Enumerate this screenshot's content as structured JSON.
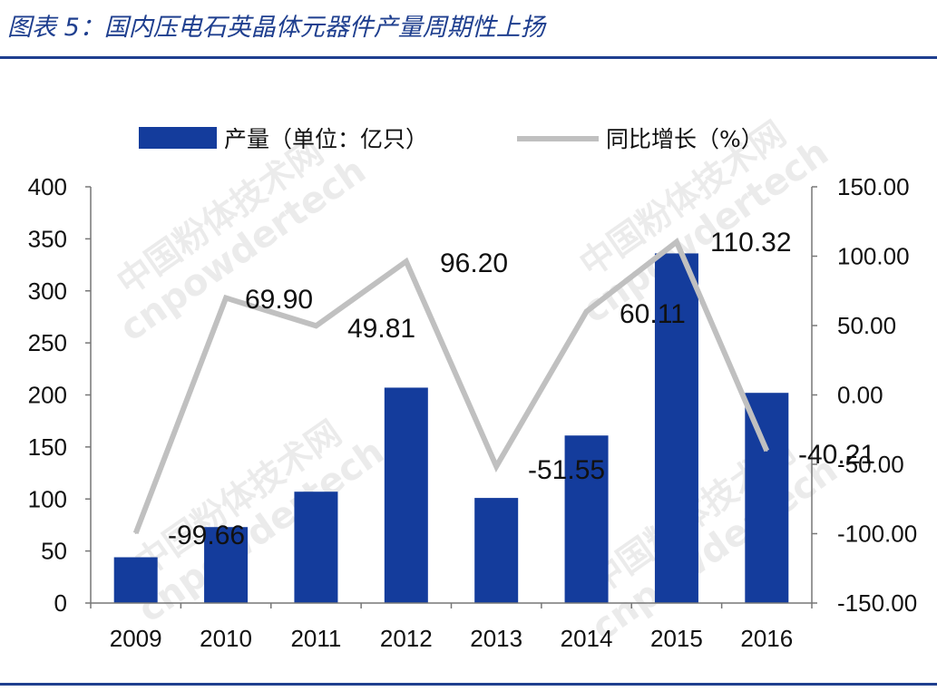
{
  "figure": {
    "title": "图表 5：国内压电石英晶体元器件产量周期性上扬",
    "watermark_cn": "中国粉体技术网",
    "watermark_en": "cnpowdertech"
  },
  "chart_data": {
    "type": "bar",
    "categories": [
      "2009",
      "2010",
      "2011",
      "2012",
      "2013",
      "2014",
      "2015",
      "2016"
    ],
    "series": [
      {
        "name": "产量（单位：亿只）",
        "type": "bar",
        "axis": "left",
        "values": [
          44,
          73,
          107,
          207,
          101,
          161,
          336,
          202
        ],
        "color": "#143c9c"
      },
      {
        "name": "同比增长（%）",
        "type": "line",
        "axis": "right",
        "values": [
          -99.66,
          69.9,
          49.81,
          96.2,
          -51.55,
          60.11,
          110.32,
          -40.21
        ],
        "labels": [
          "-99.66",
          "69.90",
          "49.81",
          "96.20",
          "-51.55",
          "60.11",
          "110.32",
          "-40.21"
        ],
        "color": "#c0c0c0"
      }
    ],
    "y_left": {
      "min": 0,
      "max": 400,
      "ticks": [
        "0",
        "50",
        "100",
        "150",
        "200",
        "250",
        "300",
        "350",
        "400"
      ]
    },
    "y_right": {
      "min": -150,
      "max": 150,
      "ticks": [
        "-150.00",
        "-100.00",
        "-50.00",
        "0.00",
        "50.00",
        "100.00",
        "150.00"
      ]
    },
    "legend_placement": "top-center",
    "grid": false
  }
}
